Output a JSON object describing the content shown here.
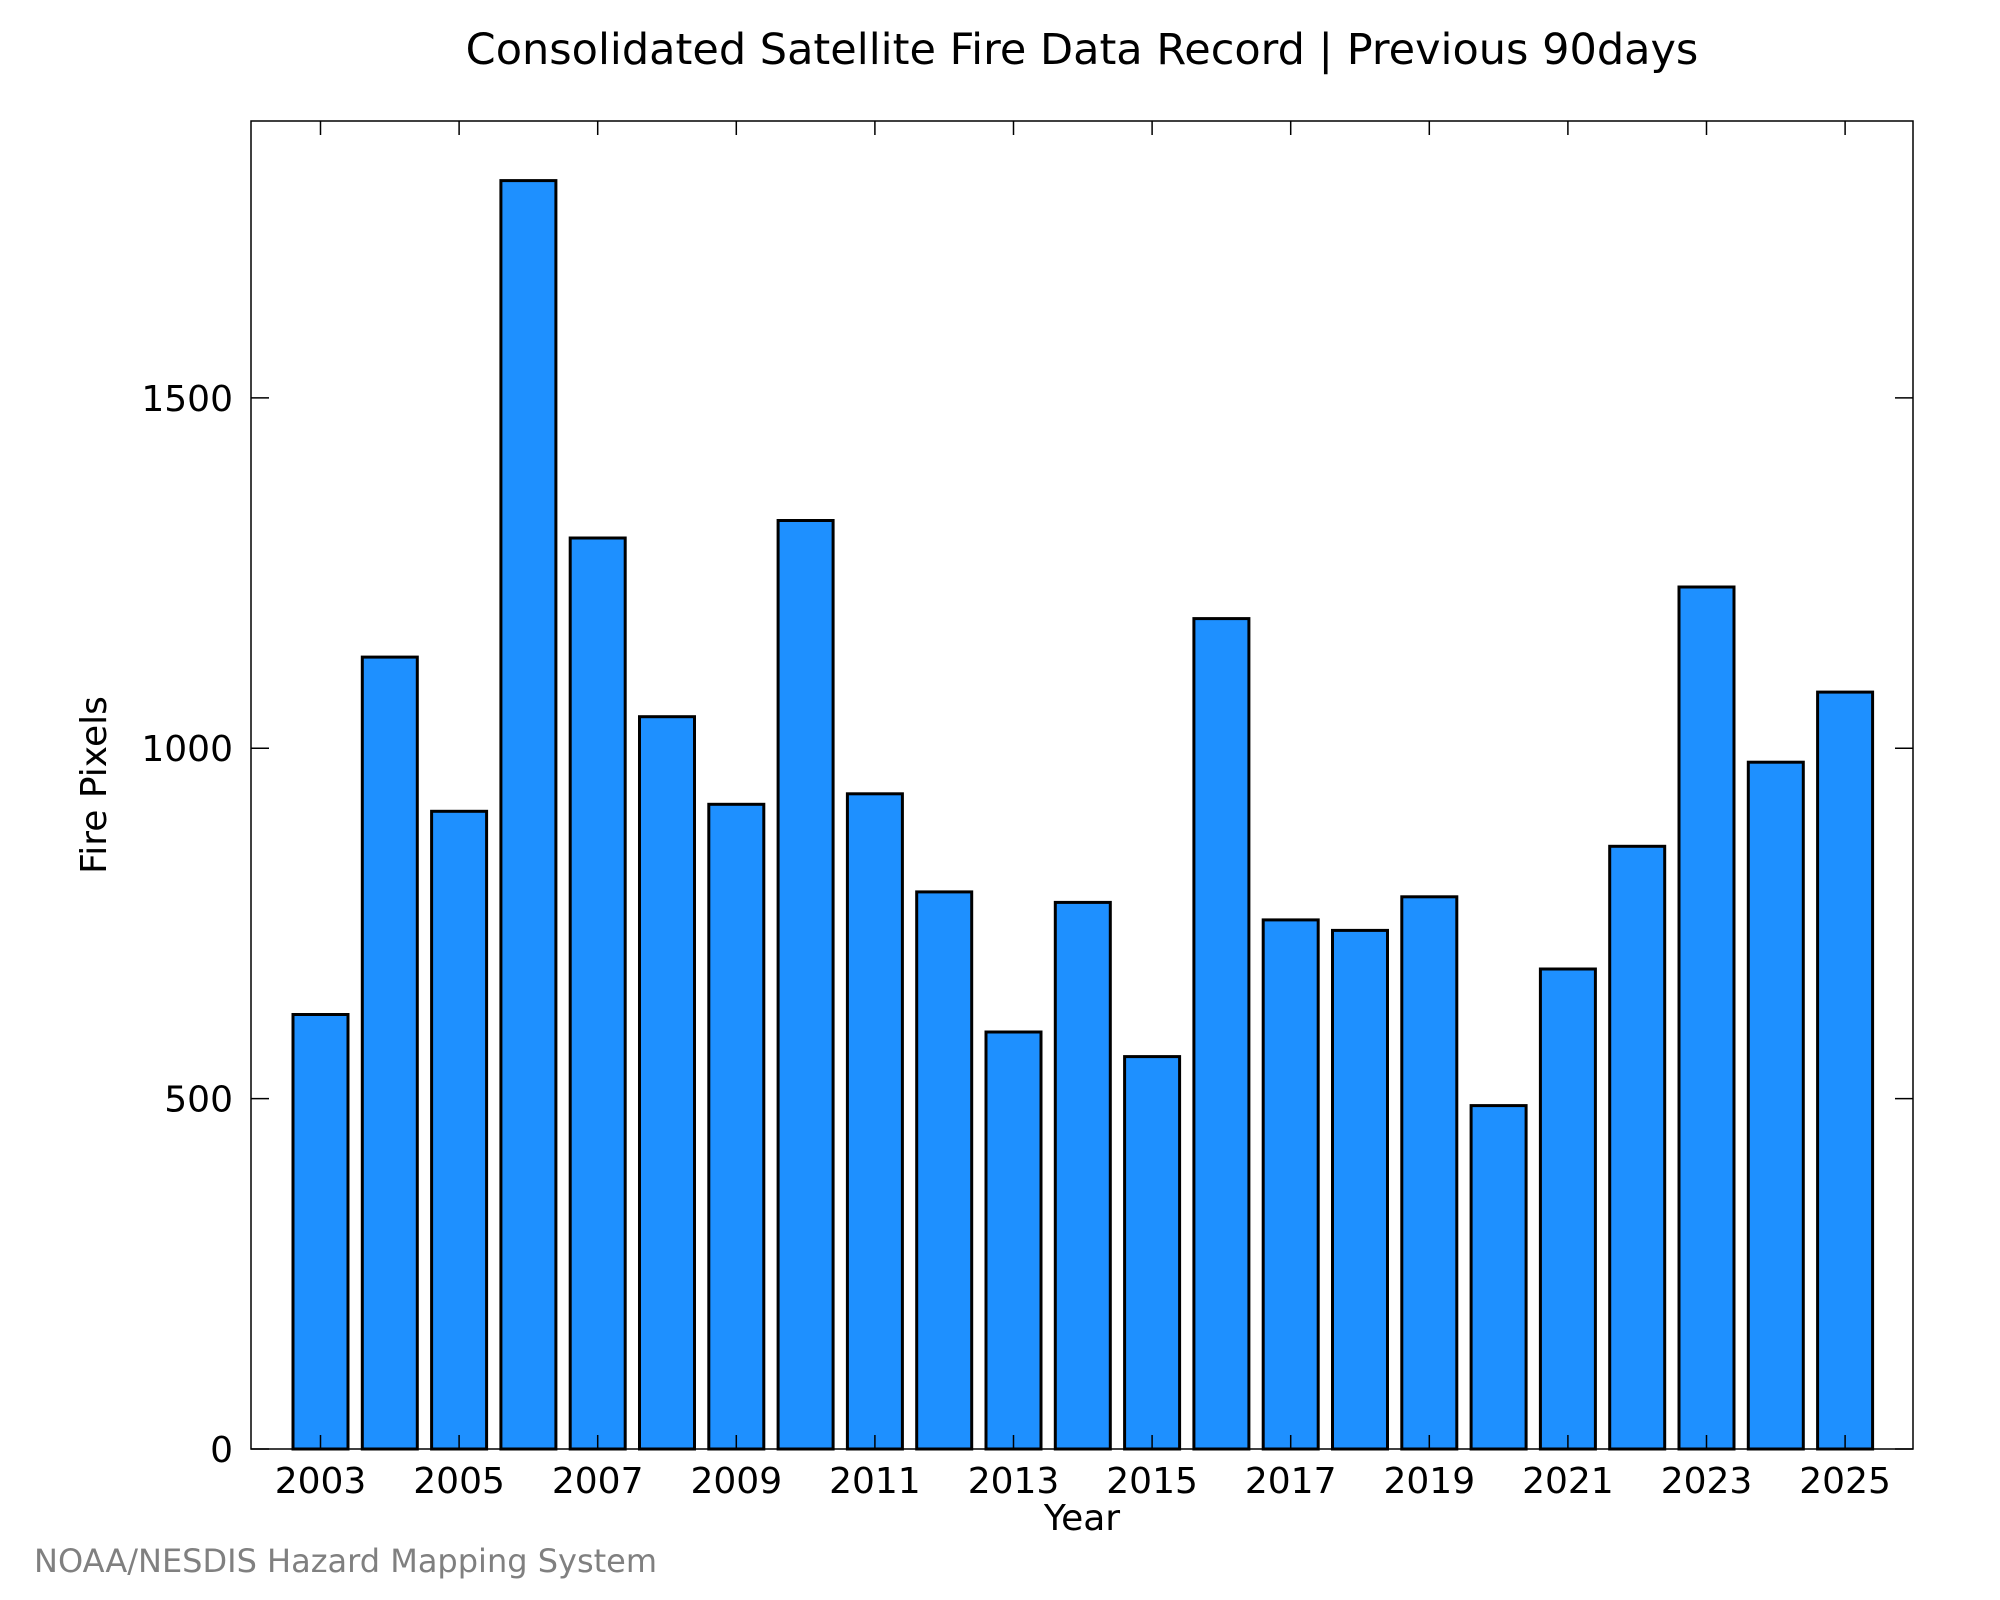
{
  "chart_data": {
    "type": "bar",
    "title": "Consolidated Satellite Fire Data Record | Previous 90days",
    "xlabel": "Year",
    "ylabel": "Fire Pixels",
    "categories": [
      "2003",
      "2004",
      "2005",
      "2006",
      "2007",
      "2008",
      "2009",
      "2010",
      "2011",
      "2012",
      "2013",
      "2014",
      "2015",
      "2016",
      "2017",
      "2018",
      "2019",
      "2020",
      "2021",
      "2022",
      "2023",
      "2024",
      "2025"
    ],
    "values": [
      620,
      1130,
      910,
      1810,
      1300,
      1045,
      920,
      1325,
      935,
      795,
      595,
      780,
      560,
      1185,
      755,
      740,
      788,
      490,
      685,
      860,
      1230,
      980,
      1080
    ],
    "x_tick_labels": [
      "2003",
      "2005",
      "2007",
      "2009",
      "2011",
      "2013",
      "2015",
      "2017",
      "2019",
      "2021",
      "2023",
      "2025"
    ],
    "y_ticks": [
      0,
      500,
      1000,
      1500
    ],
    "ylim": [
      0,
      1895
    ],
    "bar_color": "#1e90ff",
    "grid": false,
    "legend": "none"
  },
  "credit": "NOAA/NESDIS Hazard Mapping System"
}
